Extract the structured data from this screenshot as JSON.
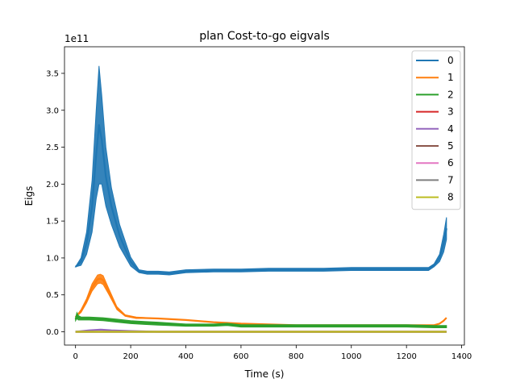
{
  "chart_data": {
    "type": "line",
    "title": "plan Cost-to-go eigvals",
    "xlabel": "Time (s)",
    "ylabel": "Eigs",
    "y_offset_label": "1e11",
    "y_scale": 100000000000,
    "xlim": [
      -40,
      1410
    ],
    "ylim": [
      -0.18,
      3.86
    ],
    "xticks": [
      0,
      200,
      400,
      600,
      800,
      1000,
      1200,
      1400
    ],
    "xtick_labels": [
      "0",
      "200",
      "400",
      "600",
      "800",
      "1000",
      "1200",
      "1400"
    ],
    "yticks": [
      0.0,
      0.5,
      1.0,
      1.5,
      2.0,
      2.5,
      3.0,
      3.5
    ],
    "ytick_labels": [
      "0.0",
      "0.5",
      "1.0",
      "1.5",
      "2.0",
      "2.5",
      "3.0",
      "3.5"
    ],
    "grid": false,
    "legend_position": "top-right",
    "series": [
      {
        "name": "0",
        "color": "#1f77b4",
        "x": [
          0,
          20,
          40,
          60,
          75,
          85,
          95,
          110,
          130,
          160,
          200,
          230,
          260,
          300,
          340,
          400,
          500,
          600,
          700,
          800,
          900,
          1000,
          1100,
          1200,
          1280,
          1300,
          1320,
          1335,
          1345
        ],
        "y": [
          0.88,
          0.95,
          1.2,
          1.7,
          2.4,
          2.8,
          2.6,
          2.1,
          1.7,
          1.3,
          0.95,
          0.82,
          0.8,
          0.8,
          0.79,
          0.82,
          0.83,
          0.83,
          0.84,
          0.84,
          0.84,
          0.85,
          0.85,
          0.85,
          0.85,
          0.9,
          1.0,
          1.2,
          1.4
        ],
        "band": [
          0.0,
          0.05,
          0.15,
          0.35,
          0.6,
          0.8,
          0.6,
          0.4,
          0.25,
          0.15,
          0.06,
          0.02,
          0.02,
          0.02,
          0.02,
          0.02,
          0.02,
          0.02,
          0.02,
          0.02,
          0.02,
          0.02,
          0.02,
          0.02,
          0.02,
          0.02,
          0.05,
          0.12,
          0.15
        ]
      },
      {
        "name": "1",
        "color": "#ff7f0e",
        "x": [
          0,
          20,
          40,
          60,
          80,
          90,
          100,
          120,
          150,
          180,
          220,
          300,
          400,
          500,
          600,
          700,
          800,
          900,
          1000,
          1100,
          1200,
          1300,
          1320,
          1335,
          1345
        ],
        "y": [
          0.2,
          0.28,
          0.42,
          0.6,
          0.71,
          0.72,
          0.7,
          0.55,
          0.32,
          0.22,
          0.19,
          0.18,
          0.16,
          0.13,
          0.11,
          0.1,
          0.09,
          0.09,
          0.09,
          0.09,
          0.09,
          0.09,
          0.11,
          0.15,
          0.19
        ],
        "band": [
          0.0,
          0.02,
          0.03,
          0.05,
          0.06,
          0.06,
          0.06,
          0.04,
          0.02,
          0.01,
          0.01,
          0.0,
          0.0,
          0.0,
          0.0,
          0.0,
          0.0,
          0.0,
          0.0,
          0.0,
          0.0,
          0.0,
          0.0,
          0.0,
          0.0
        ]
      },
      {
        "name": "2",
        "color": "#2ca02c",
        "x": [
          0,
          5,
          10,
          20,
          50,
          100,
          150,
          200,
          250,
          300,
          400,
          500,
          550,
          600,
          700,
          800,
          900,
          1000,
          1100,
          1200,
          1300,
          1345
        ],
        "y": [
          0.17,
          0.22,
          0.19,
          0.18,
          0.18,
          0.17,
          0.15,
          0.13,
          0.12,
          0.11,
          0.09,
          0.09,
          0.1,
          0.08,
          0.08,
          0.08,
          0.08,
          0.08,
          0.08,
          0.08,
          0.07,
          0.07
        ],
        "band": [
          0.02,
          0.04,
          0.03,
          0.02,
          0.02,
          0.02,
          0.02,
          0.02,
          0.02,
          0.02,
          0.015,
          0.015,
          0.015,
          0.015,
          0.015,
          0.015,
          0.015,
          0.015,
          0.015,
          0.015,
          0.015,
          0.015
        ]
      },
      {
        "name": "3",
        "color": "#d62728",
        "x": [
          0,
          1345
        ],
        "y": [
          0.0,
          0.0
        ],
        "band": [
          0,
          0
        ]
      },
      {
        "name": "4",
        "color": "#9467bd",
        "x": [
          0,
          50,
          90,
          130,
          200,
          300,
          1345
        ],
        "y": [
          0.0,
          0.02,
          0.03,
          0.02,
          0.01,
          0.0,
          0.0
        ],
        "band": [
          0,
          0,
          0,
          0,
          0,
          0,
          0
        ]
      },
      {
        "name": "5",
        "color": "#8c564b",
        "x": [
          0,
          1345
        ],
        "y": [
          0.0,
          0.0
        ],
        "band": [
          0,
          0
        ]
      },
      {
        "name": "6",
        "color": "#e377c2",
        "x": [
          0,
          1345
        ],
        "y": [
          0.0,
          0.0
        ],
        "band": [
          0,
          0
        ]
      },
      {
        "name": "7",
        "color": "#7f7f7f",
        "x": [
          0,
          1345
        ],
        "y": [
          0.0,
          0.0
        ],
        "band": [
          0,
          0
        ]
      },
      {
        "name": "8",
        "color": "#bcbd22",
        "x": [
          0,
          1345
        ],
        "y": [
          0.0,
          0.0
        ],
        "band": [
          0,
          0
        ]
      }
    ]
  }
}
